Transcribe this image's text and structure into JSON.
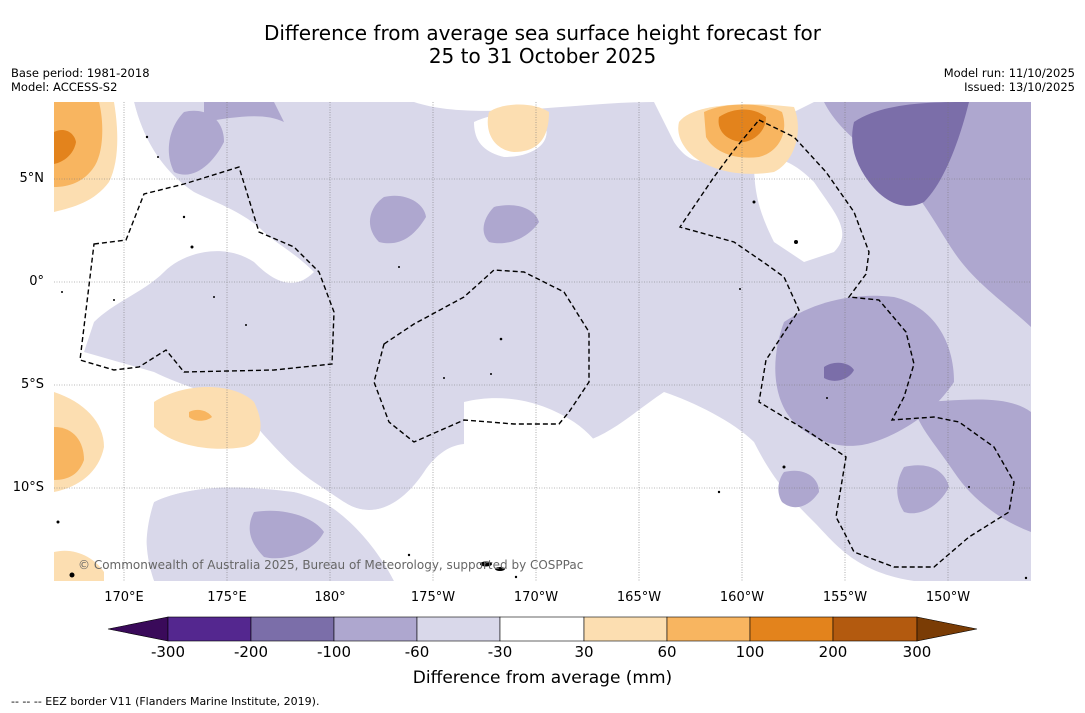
{
  "header": {
    "title_line1": "Difference from average sea surface height forecast for",
    "title_line2": "25 to 31 October 2025",
    "base_period": "Base period: 1981-2018",
    "model": "Model: ACCESS-S2",
    "model_run": "Model run: 11/10/2025",
    "issued": "Issued: 13/10/2025"
  },
  "map": {
    "lat_labels": [
      "5°N",
      "0°",
      "5°S",
      "10°S"
    ],
    "lon_labels": [
      "170°E",
      "175°E",
      "180°",
      "175°W",
      "170°W",
      "165°W",
      "160°W",
      "155°W",
      "150°W"
    ],
    "copyright": "© Commonwealth of Australia 2025, Bureau of Meteorology, supported by COSPPac"
  },
  "colorbar": {
    "title": "Difference from average (mm)",
    "ticks": [
      "-300",
      "-200",
      "-100",
      "-60",
      "-30",
      "30",
      "60",
      "100",
      "200",
      "300"
    ],
    "colors": {
      "below": "#3a0a5a",
      "n300_200": "#54278f",
      "n200_100": "#7b6ea9",
      "n100_60": "#aea7cf",
      "n60_30": "#d9d8ea",
      "n30_30": "#ffffff",
      "p30_60": "#fcdeb1",
      "p60_100": "#f8b560",
      "p100_200": "#e3831c",
      "p200_300": "#b35a0f",
      "above": "#7a3c05"
    }
  },
  "footnote": "--  --  -- EEZ border V11 (Flanders Marine Institute, 2019)."
}
